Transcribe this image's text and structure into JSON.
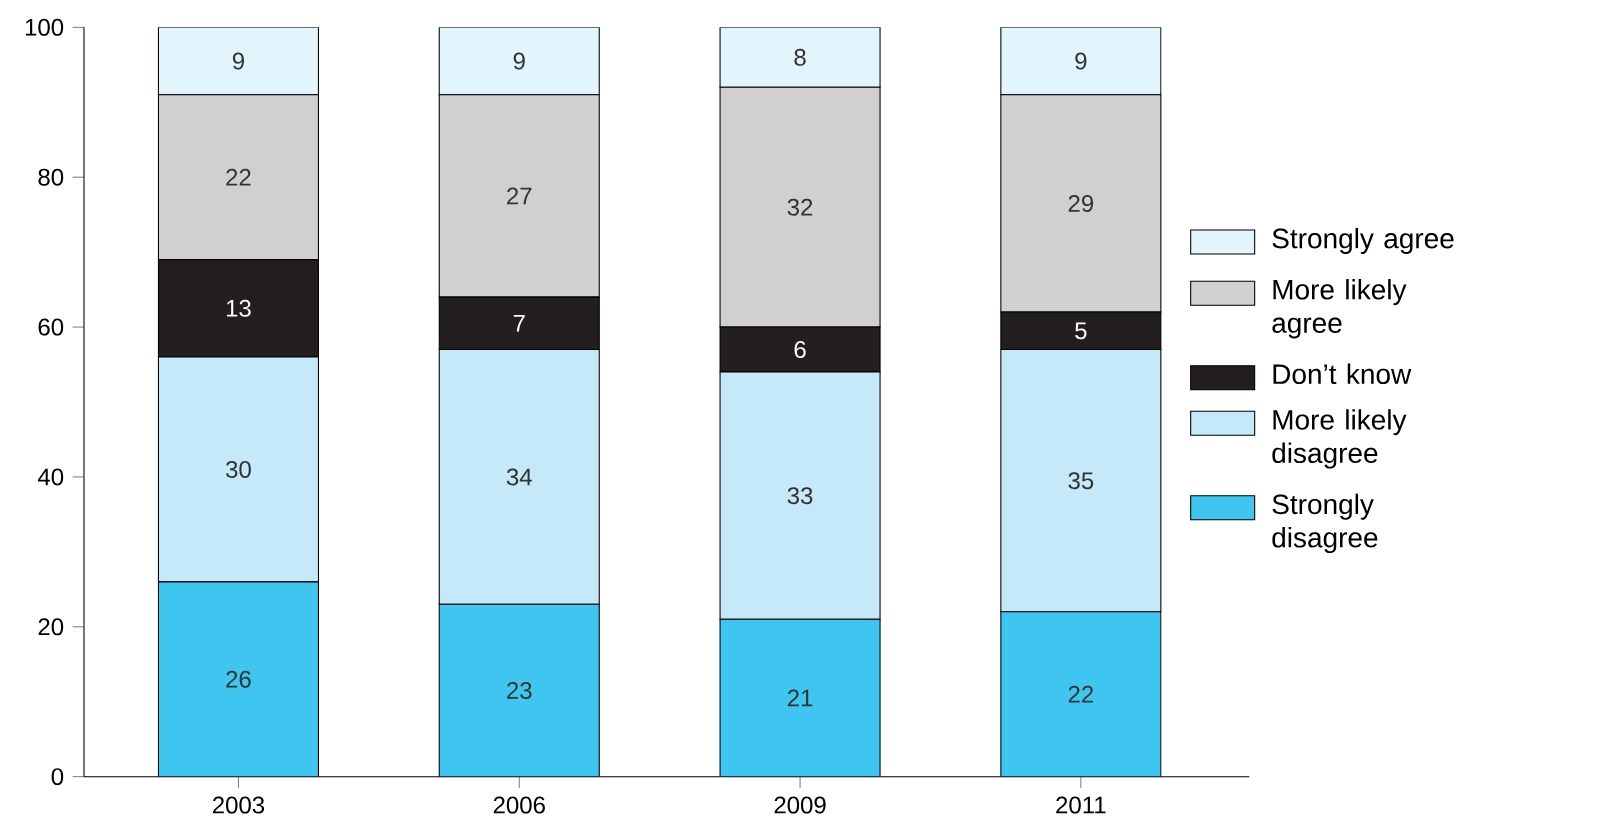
{
  "chart_data": {
    "type": "bar",
    "stacked": true,
    "categories": [
      "2003",
      "2006",
      "2009",
      "2011"
    ],
    "series": [
      {
        "name": "Strongly disagree",
        "color": "#3fc6f0",
        "values": [
          26,
          23,
          21,
          22
        ]
      },
      {
        "name": "More likely disagree",
        "color": "#c6e9f9",
        "values": [
          30,
          34,
          33,
          35
        ]
      },
      {
        "name": "Don’t know",
        "color": "#231f20",
        "values": [
          13,
          7,
          6,
          5
        ]
      },
      {
        "name": "More likely agree",
        "color": "#d0d0d2",
        "values": [
          22,
          27,
          32,
          29
        ]
      },
      {
        "name": "Strongly agree",
        "color": "#e3f5fc",
        "values": [
          9,
          9,
          8,
          9
        ]
      }
    ],
    "ylim": [
      0,
      100
    ],
    "yticks": [
      0,
      20,
      40,
      60,
      80,
      100
    ],
    "data_labels": true,
    "legend": "right"
  }
}
